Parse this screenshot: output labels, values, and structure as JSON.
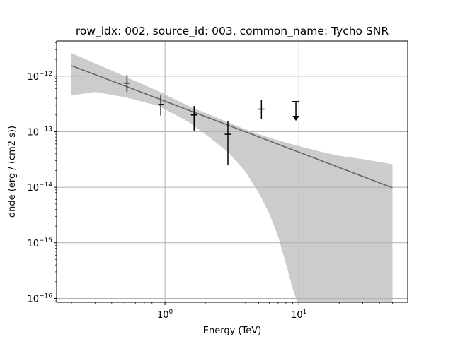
{
  "chart_data": {
    "type": "scatter",
    "title": "row_idx: 002, source_id: 003, common_name: Tycho SNR",
    "xlabel": "Energy (TeV)",
    "ylabel": "dnde (erg / (cm2 s))",
    "xscale": "log",
    "yscale": "log",
    "xlim": [
      0.155,
      65
    ],
    "ylim": [
      8.5e-17,
      4.3e-12
    ],
    "grid": true,
    "x_ticks": [
      {
        "value": 1,
        "base": "10",
        "exp": "0"
      },
      {
        "value": 10,
        "base": "10",
        "exp": "1"
      }
    ],
    "y_ticks": [
      {
        "value": 1e-16,
        "base": "10",
        "exp": "−16"
      },
      {
        "value": 1e-15,
        "base": "10",
        "exp": "−15"
      },
      {
        "value": 1e-14,
        "base": "10",
        "exp": "−14"
      },
      {
        "value": 1e-13,
        "base": "10",
        "exp": "−13"
      },
      {
        "value": 1e-12,
        "base": "10",
        "exp": "−12"
      }
    ],
    "model_line": {
      "x": [
        0.2,
        50
      ],
      "y": [
        1.55e-12,
        9.8e-15
      ],
      "color": "#666666"
    },
    "error_band": {
      "color": "#cccccc",
      "upper": {
        "x": [
          0.2,
          0.5,
          0.9,
          1.6,
          2.3,
          3,
          4,
          5,
          7,
          10,
          15,
          20,
          30,
          50
        ],
        "y": [
          2.6e-12,
          1e-12,
          5.3e-13,
          2.7e-13,
          1.9e-13,
          1.45e-13,
          1.1e-13,
          9e-14,
          7e-14,
          5.5e-14,
          4.3e-14,
          3.7e-14,
          3.2e-14,
          2.6e-14
        ]
      },
      "lower": {
        "x": [
          0.2,
          0.3,
          0.5,
          0.9,
          1.5,
          2.0,
          3.0,
          4.0,
          5.0,
          6.0,
          7.0,
          8.0,
          9.0,
          9.5,
          9.8,
          10.0,
          50
        ],
        "y": [
          4.5e-13,
          5.2e-13,
          4.2e-13,
          2.9e-13,
          1.5e-13,
          9e-14,
          4.2e-14,
          1.9e-14,
          8e-15,
          3.4e-15,
          1.3e-15,
          4.2e-16,
          1.5e-16,
          1e-16,
          8.5e-17,
          8.5e-17,
          8.5e-17
        ]
      }
    },
    "flux_points": [
      {
        "x": 0.52,
        "y": 7.5e-13,
        "yerr_low": 5.2e-13,
        "yerr_high": 1.05e-12,
        "xerr_low": 0.49,
        "xerr_high": 0.55
      },
      {
        "x": 0.93,
        "y": 3.1e-13,
        "yerr_low": 1.95e-13,
        "yerr_high": 4.5e-13,
        "xerr_low": 0.89,
        "xerr_high": 0.98
      },
      {
        "x": 1.65,
        "y": 2e-13,
        "yerr_low": 1.05e-13,
        "yerr_high": 2.9e-13,
        "xerr_low": 1.56,
        "xerr_high": 1.74
      },
      {
        "x": 2.95,
        "y": 9e-14,
        "yerr_low": 2.5e-14,
        "yerr_high": 1.55e-13,
        "xerr_low": 2.79,
        "xerr_high": 3.1
      },
      {
        "x": 5.25,
        "y": 2.55e-13,
        "yerr_low": 1.7e-13,
        "yerr_high": 3.7e-13,
        "xerr_low": 4.97,
        "xerr_high": 5.53
      }
    ],
    "upper_limits": [
      {
        "x": 9.5,
        "y": 3.5e-13,
        "arrow_to": 1.6e-13,
        "xerr_low": 8.95,
        "xerr_high": 10.05
      }
    ]
  }
}
